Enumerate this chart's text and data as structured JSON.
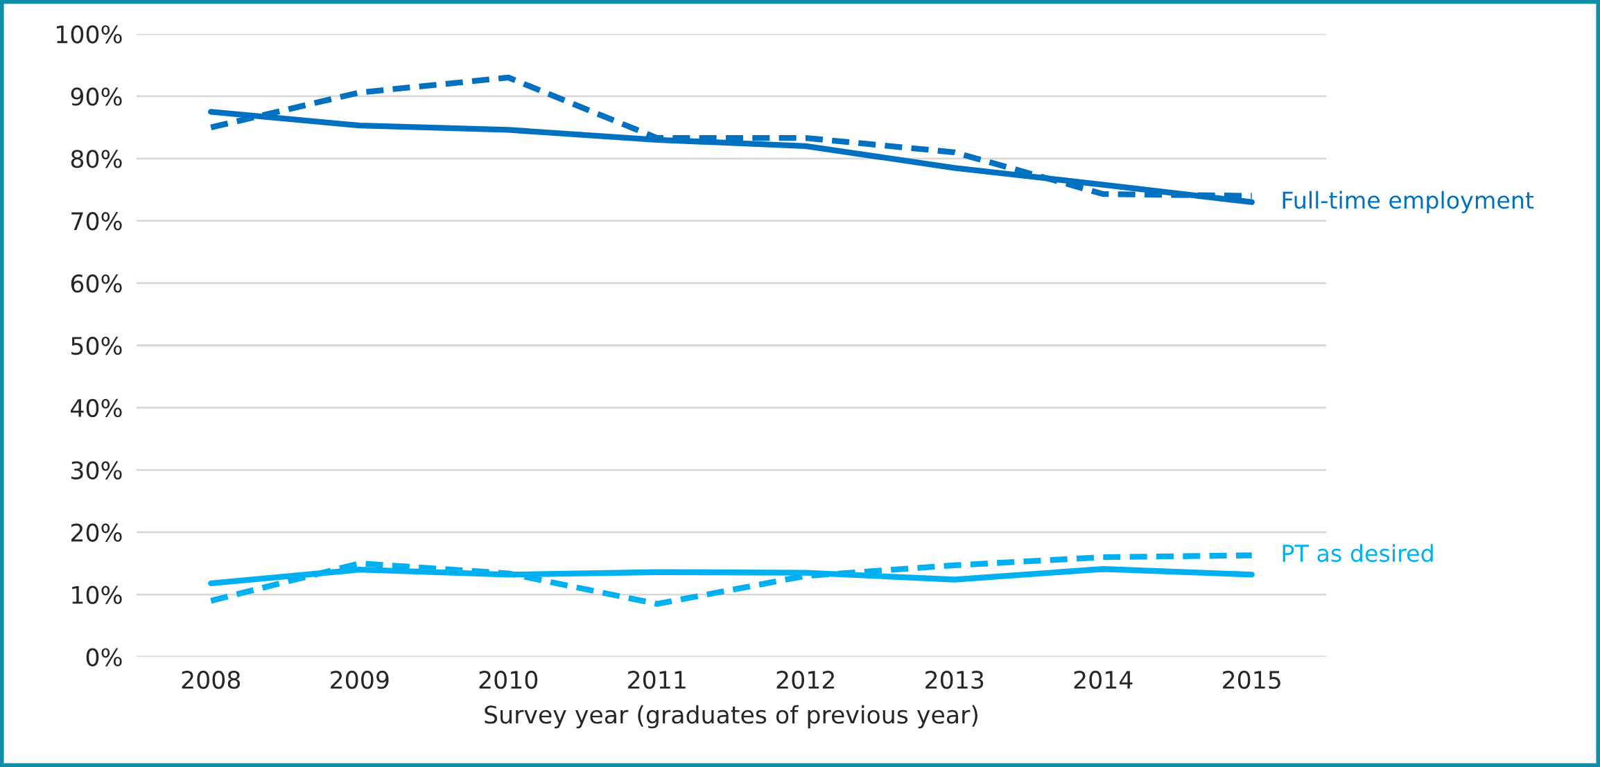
{
  "chart_data": {
    "type": "line",
    "xlabel": "Survey year (graduates of previous year)",
    "categories": [
      "2008",
      "2009",
      "2010",
      "2011",
      "2012",
      "2013",
      "2014",
      "2015"
    ],
    "series": [
      {
        "name": "Full-time employment",
        "color": "#0070c0",
        "line_style": "solid",
        "values": [
          87.5,
          85.3,
          84.6,
          83.0,
          82.0,
          78.5,
          75.8,
          73.0
        ]
      },
      {
        "color": "#0070c0",
        "line_style": "dashed",
        "values": [
          85.0,
          90.6,
          93.0,
          83.3,
          83.3,
          81.0,
          74.3,
          74.0
        ]
      },
      {
        "color": "#00b0f0",
        "line_style": "solid",
        "values": [
          11.8,
          14.0,
          13.2,
          13.6,
          13.5,
          12.4,
          14.1,
          13.2
        ]
      },
      {
        "name": "PT as desired",
        "color": "#00b0f0",
        "line_style": "dashed",
        "values": [
          9.0,
          15.0,
          13.4,
          8.5,
          13.0,
          14.7,
          16.0,
          16.3
        ]
      }
    ],
    "ylim": [
      0,
      100
    ],
    "yticks": [
      {
        "value": 0,
        "label": "0%"
      },
      {
        "value": 10,
        "label": "10%"
      },
      {
        "value": 20,
        "label": "20%"
      },
      {
        "value": 30,
        "label": "30%"
      },
      {
        "value": 40,
        "label": "40%"
      },
      {
        "value": 50,
        "label": "50%"
      },
      {
        "value": 60,
        "label": "60%"
      },
      {
        "value": 70,
        "label": "70%"
      },
      {
        "value": 80,
        "label": "80%"
      },
      {
        "value": 90,
        "label": "90%"
      },
      {
        "value": 100,
        "label": "100%"
      }
    ],
    "grid": "y",
    "marker": "none"
  }
}
